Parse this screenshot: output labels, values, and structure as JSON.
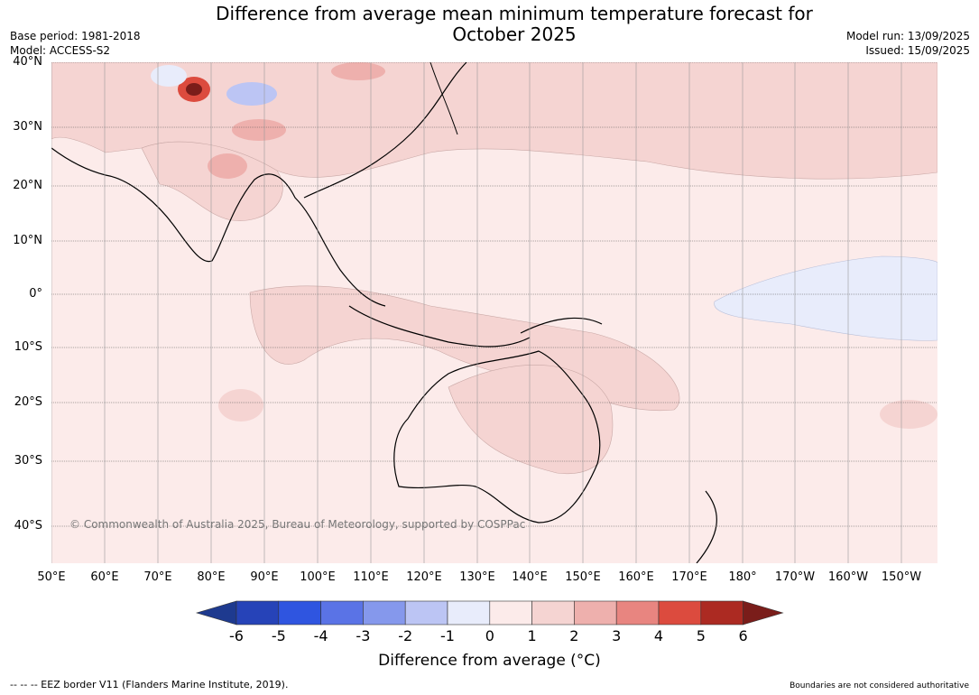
{
  "title_line1": "Difference from average mean minimum temperature forecast for",
  "title_line2": "October 2025",
  "base_period": "Base period: 1981-2018",
  "model": "Model: ACCESS-S2",
  "model_run": "Model run: 13/09/2025",
  "issued": "Issued: 15/09/2025",
  "lat_labels": [
    "40°N",
    "30°N",
    "20°N",
    "10°N",
    "0°",
    "10°S",
    "20°S",
    "30°S",
    "40°S"
  ],
  "lon_labels": [
    "50°E",
    "60°E",
    "70°E",
    "80°E",
    "90°E",
    "100°E",
    "110°E",
    "120°E",
    "130°E",
    "140°E",
    "150°E",
    "160°E",
    "170°E",
    "180°",
    "170°W",
    "160°W",
    "150°W"
  ],
  "copyright": "© Commonwealth of Australia 2025, Bureau of Meteorology, supported by COSPPac",
  "colorbar": {
    "ticks": [
      "-6",
      "-5",
      "-4",
      "-3",
      "-2",
      "-1",
      "0",
      "1",
      "2",
      "3",
      "4",
      "5",
      "6"
    ],
    "colors": [
      "#1e3a8f",
      "#2643b8",
      "#2f55e0",
      "#5a73e6",
      "#8598ec",
      "#bcc5f4",
      "#e8ecfb",
      "#fcebea",
      "#f5d4d2",
      "#eeb0ad",
      "#e88580",
      "#dc4b3e",
      "#ac2a22",
      "#7a1d1a"
    ],
    "label": "Difference from average (°C)"
  },
  "footer_left": "--  --  -- EEZ border V11 (Flanders Marine Institute, 2019).",
  "footer_right": "Boundaries are not considered authoritative"
}
